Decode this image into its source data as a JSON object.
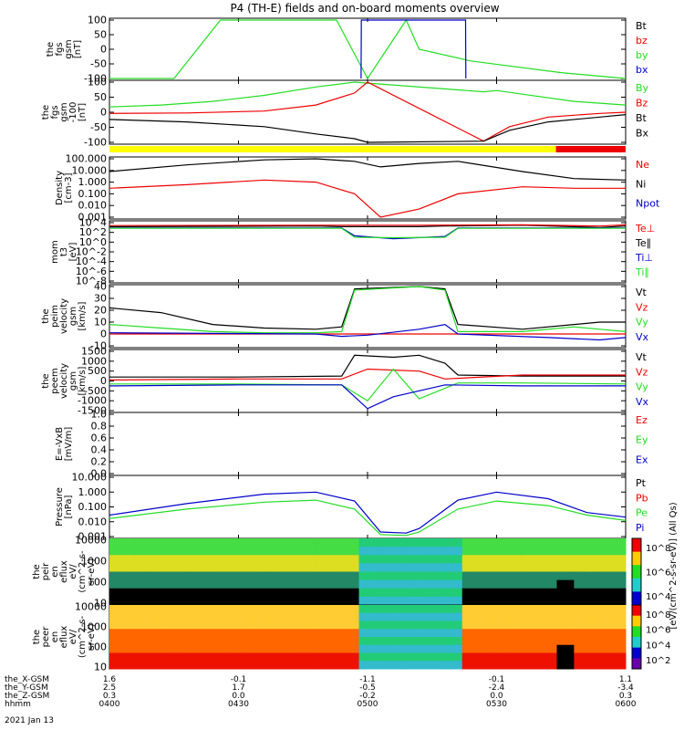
{
  "title": "P4 (TH-E) fields and on-board moments overview",
  "colors": {
    "black": "#000000",
    "red": "#ee0000",
    "green": "#22dd22",
    "blue": "#0000cc",
    "yellow": "#ffff00",
    "flag_red": "#ee0000"
  },
  "chart_data": [
    {
      "type": "line",
      "panel": "fgs",
      "ylabel": [
        "the",
        "fgs",
        "gsm",
        "[nT]"
      ],
      "yticks": [
        "100",
        "50",
        "0",
        "-50",
        "-100"
      ],
      "ylim": [
        -100,
        100
      ],
      "legend": [
        {
          "name": "Bt",
          "color": "#000000"
        },
        {
          "name": "bz",
          "color": "#ee0000"
        },
        {
          "name": "by",
          "color": "#22dd22"
        },
        {
          "name": "bx",
          "color": "#0000cc"
        }
      ],
      "series": [
        {
          "name": "by",
          "color": "#22dd22",
          "x": [
            0.0,
            0.25,
            0.43,
            0.88,
            1.0,
            1.15,
            1.2,
            1.4,
            1.75,
            2.0
          ],
          "y": [
            -100,
            -100,
            100,
            100,
            -100,
            100,
            0,
            -40,
            -80,
            -100
          ]
        },
        {
          "name": "bx",
          "color": "#0000cc",
          "x": [
            0.975,
            0.976,
            1.38,
            1.381
          ],
          "y": [
            -100,
            100,
            100,
            -100
          ]
        }
      ]
    },
    {
      "type": "line",
      "panel": "fgs-detail",
      "ylabel": [
        "the",
        "fgs",
        "gsm",
        "-100",
        "[nT]"
      ],
      "yticks": [
        "100",
        "50",
        "0",
        "-50",
        "-100"
      ],
      "ylim": [
        -125,
        125
      ],
      "legend": [
        {
          "name": "By",
          "color": "#22dd22"
        },
        {
          "name": "Bz",
          "color": "#ee0000"
        },
        {
          "name": "Bt",
          "color": "#000000"
        },
        {
          "name": "Bx",
          "color": "#000000"
        }
      ],
      "series": [
        {
          "name": "By",
          "color": "#22dd22",
          "x": [
            0.0,
            0.2,
            0.4,
            0.6,
            0.8,
            0.95,
            1.45,
            1.5,
            1.6,
            1.8,
            2.0
          ],
          "y": [
            22,
            30,
            45,
            70,
            105,
            125,
            85,
            90,
            75,
            45,
            30
          ]
        },
        {
          "name": "Bz",
          "color": "#ee0000",
          "x": [
            0.0,
            0.3,
            0.6,
            0.8,
            0.95,
            1.0,
            1.45,
            1.55,
            1.7,
            1.9,
            2.0
          ],
          "y": [
            -5,
            -3,
            5,
            30,
            80,
            125,
            -120,
            -60,
            -20,
            -5,
            0
          ]
        },
        {
          "name": "Bt",
          "color": "#000000",
          "x": [
            0.0,
            0.3,
            0.6,
            0.8,
            0.95,
            1.0,
            1.45,
            1.55,
            1.7,
            1.9,
            2.0
          ],
          "y": [
            -30,
            -40,
            -60,
            -90,
            -110,
            -125,
            -120,
            -75,
            -40,
            -20,
            -10
          ]
        }
      ]
    },
    {
      "type": "line",
      "panel": "density",
      "scale": "log",
      "ylabel": [
        "Density",
        "[cm-3]"
      ],
      "yticks": [
        "100.000",
        "10.000",
        "1.000",
        "0.100",
        "0.010",
        "0.001"
      ],
      "ylim": [
        0.001,
        100
      ],
      "legend": [
        {
          "name": "Ne",
          "color": "#ee0000"
        },
        {
          "name": "Ni",
          "color": "#000000"
        },
        {
          "name": "Npot",
          "color": "#0000cc"
        }
      ],
      "series": [
        {
          "name": "Ni",
          "color": "#000000",
          "x": [
            0.0,
            0.3,
            0.6,
            0.8,
            0.95,
            1.05,
            1.2,
            1.35,
            1.6,
            1.8,
            2.0
          ],
          "y": [
            8,
            30,
            80,
            100,
            60,
            20,
            40,
            60,
            8,
            2,
            1.5
          ]
        },
        {
          "name": "Ne",
          "color": "#ee0000",
          "x": [
            0.0,
            0.3,
            0.6,
            0.8,
            0.95,
            1.05,
            1.2,
            1.35,
            1.6,
            1.8,
            2.0
          ],
          "y": [
            0.3,
            0.6,
            1.5,
            1.0,
            0.1,
            0.001,
            0.005,
            0.1,
            0.4,
            0.3,
            0.3
          ]
        }
      ]
    },
    {
      "type": "line",
      "panel": "moments-temperature",
      "scale": "log",
      "ylabel": [
        "mom",
        "t3",
        "[eV]"
      ],
      "yticks": [
        "10^4",
        "10^2",
        "10^0",
        "10^-2",
        "10^-4",
        "10^-6",
        "10^-8"
      ],
      "ylim": [
        1e-08,
        10000.0
      ],
      "legend": [
        {
          "name": "Te⊥",
          "color": "#ee0000"
        },
        {
          "name": "Te∥",
          "color": "#000000"
        },
        {
          "name": "Ti⊥",
          "color": "#0000cc"
        },
        {
          "name": "Ti∥",
          "color": "#22dd22"
        }
      ],
      "series": [
        {
          "name": "Te∥",
          "color": "#000000",
          "x": [
            0.0,
            0.8,
            0.9,
            1.0,
            1.2,
            1.3,
            1.6,
            1.9,
            2.0
          ],
          "y": [
            1500,
            2000,
            1500,
            1500,
            1500,
            2000,
            3000,
            1000,
            2000
          ]
        },
        {
          "name": "Te⊥",
          "color": "#ee0000",
          "x": [
            0.0,
            0.8,
            1.0,
            1.2,
            1.6,
            1.9,
            2.0
          ],
          "y": [
            2500,
            3000,
            3000,
            3000,
            3500,
            2000,
            3500
          ]
        },
        {
          "name": "Ti⊥",
          "color": "#0000cc",
          "x": [
            0.0,
            0.9,
            0.95,
            1.1,
            1.3,
            1.35,
            1.9,
            2.0
          ],
          "y": [
            800,
            800,
            20,
            5,
            15,
            800,
            800,
            800
          ]
        },
        {
          "name": "Ti∥",
          "color": "#22dd22",
          "x": [
            0.0,
            0.9,
            0.95,
            1.1,
            1.3,
            1.35,
            2.0
          ],
          "y": [
            700,
            700,
            10,
            8,
            10,
            700,
            700
          ]
        }
      ]
    },
    {
      "type": "line",
      "panel": "peim-velocity",
      "ylabel": [
        "the",
        "peim",
        "velocity",
        "gsm",
        "[km/s]"
      ],
      "yticks": [
        "40",
        "30",
        "20",
        "10",
        "0",
        "-10"
      ],
      "ylim": [
        -10,
        40
      ],
      "legend": [
        {
          "name": "Vt",
          "color": "#000000"
        },
        {
          "name": "Vz",
          "color": "#ee0000"
        },
        {
          "name": "Vy",
          "color": "#22dd22"
        },
        {
          "name": "Vx",
          "color": "#0000cc"
        }
      ],
      "series": [
        {
          "name": "Vt",
          "color": "#000000",
          "x": [
            0.0,
            0.2,
            0.4,
            0.6,
            0.8,
            0.9,
            0.95,
            1.2,
            1.3,
            1.35,
            1.6,
            1.8,
            1.9,
            2.0
          ],
          "y": [
            22,
            18,
            8,
            5,
            4,
            6,
            38,
            40,
            38,
            8,
            4,
            8,
            10,
            10
          ]
        },
        {
          "name": "Vy",
          "color": "#22dd22",
          "x": [
            0.0,
            0.2,
            0.4,
            0.6,
            0.8,
            0.9,
            0.95,
            1.2,
            1.3,
            1.35,
            1.6,
            1.8,
            1.9,
            2.0
          ],
          "y": [
            8,
            5,
            2,
            1,
            1,
            2,
            37,
            40,
            37,
            2,
            2,
            6,
            4,
            2
          ]
        },
        {
          "name": "Vz",
          "color": "#ee0000",
          "x": [
            0.0,
            0.5,
            1.0,
            1.5,
            2.0
          ],
          "y": [
            0,
            0,
            0,
            0,
            0
          ]
        },
        {
          "name": "Vx",
          "color": "#0000cc",
          "x": [
            0.0,
            0.8,
            0.9,
            1.0,
            1.2,
            1.3,
            1.35,
            1.7,
            1.9,
            2.0
          ],
          "y": [
            1,
            0,
            -2,
            -1,
            4,
            8,
            0,
            -3,
            -5,
            -3
          ]
        }
      ]
    },
    {
      "type": "line",
      "panel": "peem-velocity",
      "ylabel": [
        "the",
        "peem",
        "velocity",
        "gsm",
        "[km/s]"
      ],
      "yticks": [
        "1500",
        "1000",
        "500",
        "0",
        "-500",
        "-1000",
        "-1500"
      ],
      "ylim": [
        -1500,
        1500
      ],
      "legend": [
        {
          "name": "Vt",
          "color": "#000000"
        },
        {
          "name": "Vz",
          "color": "#ee0000"
        },
        {
          "name": "Vy",
          "color": "#22dd22"
        },
        {
          "name": "Vx",
          "color": "#0000cc"
        }
      ],
      "series": [
        {
          "name": "Vt",
          "color": "#000000",
          "x": [
            0.0,
            0.5,
            0.9,
            0.95,
            1.1,
            1.2,
            1.3,
            1.35,
            1.6,
            2.0
          ],
          "y": [
            200,
            200,
            250,
            1300,
            1200,
            1300,
            900,
            300,
            250,
            250
          ]
        },
        {
          "name": "Vz",
          "color": "#ee0000",
          "x": [
            0.0,
            0.5,
            0.9,
            1.0,
            1.2,
            1.3,
            1.6,
            2.0
          ],
          "y": [
            50,
            100,
            100,
            600,
            500,
            100,
            300,
            300
          ]
        },
        {
          "name": "Vy",
          "color": "#22dd22",
          "x": [
            0.0,
            0.5,
            0.9,
            1.0,
            1.1,
            1.2,
            1.35,
            1.6,
            2.0
          ],
          "y": [
            -150,
            -150,
            -200,
            -1000,
            600,
            -900,
            -100,
            -100,
            -150
          ]
        },
        {
          "name": "Vx",
          "color": "#0000cc",
          "x": [
            0.0,
            0.5,
            0.9,
            1.0,
            1.1,
            1.3,
            1.6,
            2.0
          ],
          "y": [
            -250,
            -200,
            -200,
            -1400,
            -800,
            -200,
            -250,
            -250
          ]
        }
      ]
    },
    {
      "type": "line",
      "panel": "efield",
      "ylabel": [
        "E=-VxB",
        "[mV/m]"
      ],
      "yticks": [
        "1.0",
        "0.8",
        "0.6",
        "0.4",
        "0.2",
        "0.0"
      ],
      "ylim": [
        0,
        1
      ],
      "legend": [
        {
          "name": "Ez",
          "color": "#ee0000"
        },
        {
          "name": "Ey",
          "color": "#22dd22"
        },
        {
          "name": "Ex",
          "color": "#0000cc"
        }
      ],
      "series": []
    },
    {
      "type": "line",
      "panel": "pressure",
      "scale": "log",
      "ylabel": [
        "Pressure",
        "[nPa]"
      ],
      "yticks": [
        "10.000",
        "1.000",
        "0.100",
        "0.010",
        "0.001"
      ],
      "ylim": [
        0.0004,
        60
      ],
      "legend": [
        {
          "name": "Pt",
          "color": "#000000"
        },
        {
          "name": "Pb",
          "color": "#ee0000"
        },
        {
          "name": "Pe",
          "color": "#22dd22"
        },
        {
          "name": "Pi",
          "color": "#0000cc"
        }
      ],
      "series": [
        {
          "name": "Pi",
          "color": "#0000cc",
          "x": [
            0.0,
            0.3,
            0.6,
            0.8,
            0.95,
            1.05,
            1.15,
            1.2,
            1.35,
            1.5,
            1.7,
            1.85,
            2.0
          ],
          "y": [
            0.03,
            0.3,
            2,
            3,
            0.5,
            0.001,
            0.0008,
            0.002,
            0.6,
            3,
            0.8,
            0.05,
            0.02
          ]
        },
        {
          "name": "Pe",
          "color": "#22dd22",
          "x": [
            0.0,
            0.3,
            0.6,
            0.8,
            0.95,
            1.05,
            1.15,
            1.2,
            1.35,
            1.5,
            1.7,
            1.85,
            2.0
          ],
          "y": [
            0.015,
            0.1,
            0.4,
            0.6,
            0.1,
            0.0006,
            0.0005,
            0.001,
            0.1,
            0.5,
            0.2,
            0.03,
            0.01
          ]
        }
      ]
    },
    {
      "type": "heatmap",
      "panel": "peir-eflux",
      "ylabel": [
        "the",
        "peir",
        "en",
        "eflux",
        "eV/",
        "(cm^2-s-",
        "sr-eV)"
      ],
      "yticks": [
        "10000",
        "1000",
        "100",
        "10"
      ],
      "colorbar": {
        "ticks": [
          "10^8",
          "10^6",
          "10^4"
        ],
        "label": "[eV/(cm^2-s-sr-eV)] (All Qs)"
      }
    },
    {
      "type": "heatmap",
      "panel": "peer-eflux",
      "ylabel": [
        "the",
        "peer",
        "en",
        "eflux",
        "eV/",
        "(cm^2-s-",
        "sr-eV)"
      ],
      "yticks": [
        "10000",
        "1000",
        "100",
        "10"
      ],
      "colorbar": {
        "ticks": [
          "10^8",
          "10^6",
          "10^4",
          "10^2"
        ]
      }
    }
  ],
  "x_axis": {
    "ticks": [
      "0400",
      "0430",
      "0500",
      "0530",
      "0600"
    ],
    "rows": [
      {
        "label": "the_X-GSM",
        "values": [
          "1.6",
          "-0.1",
          "-1.1",
          "-0.1",
          "1.1"
        ]
      },
      {
        "label": "the_Y-GSM",
        "values": [
          "2.5",
          "1.7",
          "-0.5",
          "-2.4",
          "-3.4"
        ]
      },
      {
        "label": "the_Z-GSM",
        "values": [
          "0.3",
          "0.0",
          "-0.2",
          "0.0",
          "0.3"
        ]
      },
      {
        "label": "hhmm",
        "values": [
          "0400",
          "0430",
          "0500",
          "0530",
          "0600"
        ]
      }
    ],
    "date": "2021 Jan 13"
  }
}
